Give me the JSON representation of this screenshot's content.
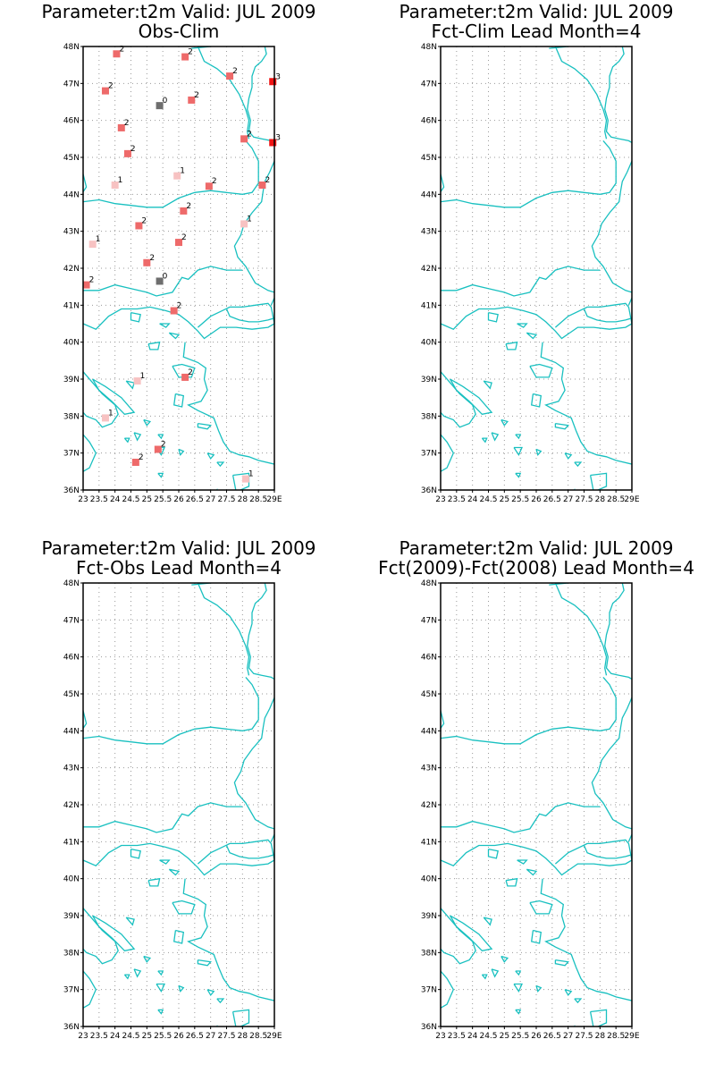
{
  "lat_labels": [
    "48N",
    "47N",
    "46N",
    "45N",
    "44N",
    "43N",
    "42N",
    "41N",
    "40N",
    "39N",
    "38N",
    "37N",
    "36N"
  ],
  "lon_labels": [
    "23",
    "23.5",
    "24",
    "24.5",
    "25",
    "25.5",
    "26",
    "26.5",
    "27",
    "27.5",
    "28",
    "28.5",
    "29E"
  ],
  "colors": {
    "coast": "#19c0c0",
    "grid": "#9a9a9a",
    "cat_0": "#6e6e6e",
    "cat_1": "#f7c2c2",
    "cat_2": "#ee6a6a",
    "cat_3": "#f01414"
  },
  "panels": [
    {
      "title": "Parameter:t2m Valid: JUL 2009",
      "subtitle": "Obs-Clim",
      "stations": [
        {
          "lon": 24.05,
          "lat": 47.8,
          "value": "2"
        },
        {
          "lon": 26.2,
          "lat": 47.72,
          "value": "2"
        },
        {
          "lon": 27.6,
          "lat": 47.2,
          "value": "2"
        },
        {
          "lon": 28.95,
          "lat": 47.05,
          "value": "3"
        },
        {
          "lon": 23.7,
          "lat": 46.8,
          "value": "2"
        },
        {
          "lon": 26.4,
          "lat": 46.55,
          "value": "2"
        },
        {
          "lon": 25.4,
          "lat": 46.4,
          "value": "0"
        },
        {
          "lon": 24.2,
          "lat": 45.8,
          "value": "2"
        },
        {
          "lon": 28.05,
          "lat": 45.5,
          "value": "2"
        },
        {
          "lon": 28.95,
          "lat": 45.4,
          "value": "3"
        },
        {
          "lon": 24.4,
          "lat": 45.1,
          "value": "2"
        },
        {
          "lon": 25.95,
          "lat": 44.5,
          "value": "1"
        },
        {
          "lon": 24.0,
          "lat": 44.25,
          "value": "1"
        },
        {
          "lon": 26.95,
          "lat": 44.22,
          "value": "2"
        },
        {
          "lon": 28.62,
          "lat": 44.25,
          "value": "2"
        },
        {
          "lon": 26.15,
          "lat": 43.55,
          "value": "2"
        },
        {
          "lon": 24.75,
          "lat": 43.15,
          "value": "2"
        },
        {
          "lon": 28.05,
          "lat": 43.2,
          "value": "1"
        },
        {
          "lon": 23.3,
          "lat": 42.65,
          "value": "1"
        },
        {
          "lon": 26.0,
          "lat": 42.7,
          "value": "2"
        },
        {
          "lon": 25.0,
          "lat": 42.15,
          "value": "2"
        },
        {
          "lon": 25.4,
          "lat": 41.65,
          "value": "0"
        },
        {
          "lon": 23.1,
          "lat": 41.55,
          "value": "2"
        },
        {
          "lon": 25.85,
          "lat": 40.85,
          "value": "2"
        },
        {
          "lon": 24.7,
          "lat": 38.95,
          "value": "1"
        },
        {
          "lon": 26.2,
          "lat": 39.05,
          "value": "2"
        },
        {
          "lon": 23.7,
          "lat": 37.95,
          "value": "1"
        },
        {
          "lon": 25.35,
          "lat": 37.1,
          "value": "2"
        },
        {
          "lon": 24.65,
          "lat": 36.75,
          "value": "2"
        },
        {
          "lon": 28.1,
          "lat": 36.3,
          "value": "1"
        }
      ]
    },
    {
      "title": "Parameter:t2m Valid: JUL 2009",
      "subtitle": "Fct-Clim Lead Month=4",
      "stations": []
    },
    {
      "title": "Parameter:t2m Valid: JUL 2009",
      "subtitle": "Fct-Obs Lead Month=4",
      "stations": []
    },
    {
      "title": "Parameter:t2m Valid: JUL 2009",
      "subtitle": "Fct(2009)-Fct(2008) Lead Month=4",
      "stations": []
    }
  ]
}
